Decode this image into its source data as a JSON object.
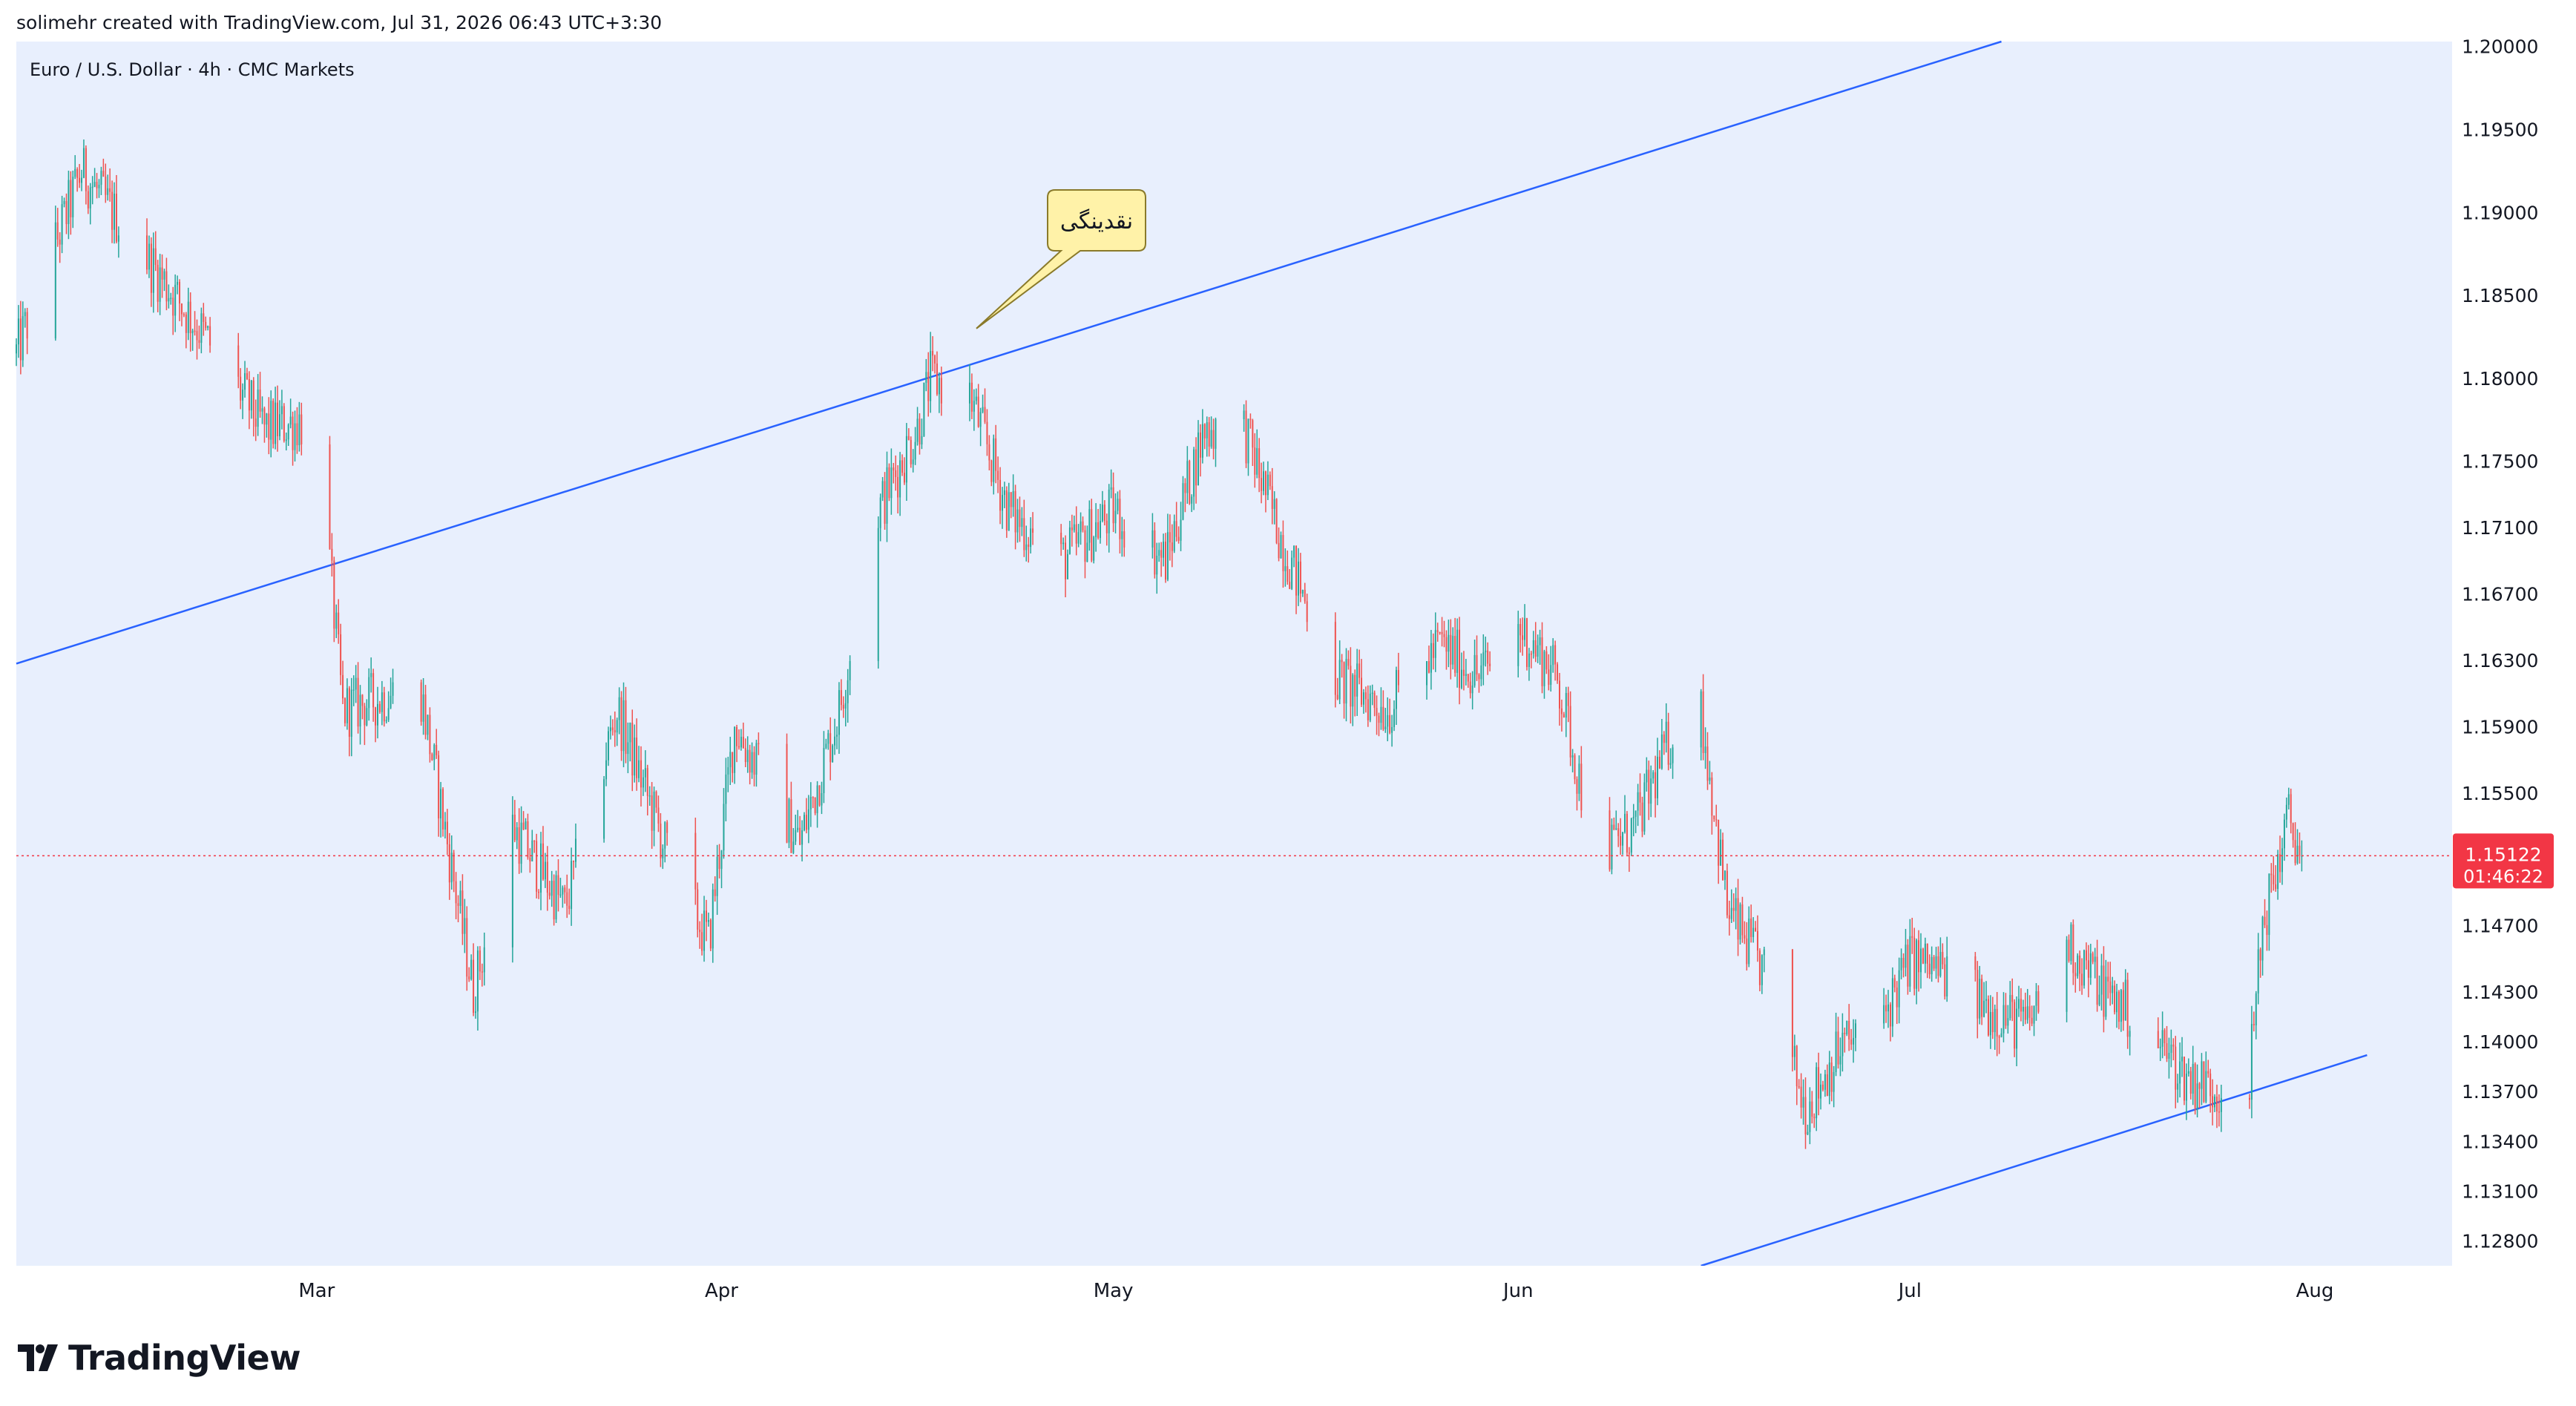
{
  "header": {
    "attribution": "solimehr created with TradingView.com, Jul 31, 2026 06:43 UTC+3:30"
  },
  "symbol": {
    "label": "Euro / U.S. Dollar · 4h · CMC Markets"
  },
  "footer": {
    "brand": "TradingView"
  },
  "colors": {
    "up": "#26a69a",
    "down": "#ef5350",
    "background": "#e8effd",
    "trendline": "#2962ff",
    "price_badge": "#f23645",
    "callout_fill": "#fff2a8",
    "callout_border": "#8a7a2a"
  },
  "chart_data": {
    "type": "candlestick",
    "timeframe": "4h",
    "x_axis": {
      "labels": [
        "Mar",
        "Apr",
        "May",
        "Jun",
        "Jul",
        "Aug"
      ]
    },
    "y_axis": {
      "ticks": [
        "1.20000",
        "1.19500",
        "1.19000",
        "1.18500",
        "1.18000",
        "1.17500",
        "1.17100",
        "1.16700",
        "1.16300",
        "1.15900",
        "1.15500",
        "1.14700",
        "1.14300",
        "1.14000",
        "1.13700",
        "1.13400",
        "1.13100",
        "1.12800"
      ],
      "range": [
        1.1265,
        1.2003
      ]
    },
    "current_price": {
      "value": "1.15122",
      "countdown": "01:46:22"
    },
    "annotation": {
      "text": "نقدینگی",
      "target_price": 1.183
    },
    "trendlines": [
      {
        "name": "upper-channel",
        "from": [
          "Feb 6",
          1.1628
        ],
        "to": [
          "Jul 8",
          1.2003
        ]
      },
      {
        "name": "lower-channel",
        "from": [
          "Jun 15",
          1.1265
        ],
        "to": [
          "Aug 5",
          1.1392
        ]
      }
    ],
    "price_path_keypoints": [
      [
        "Feb 6",
        1.1815
      ],
      [
        "Feb 11",
        1.1925
      ],
      [
        "Feb 20",
        1.183
      ],
      [
        "Feb 25",
        1.177
      ],
      [
        "Mar 1",
        1.1775
      ],
      [
        "Mar 3",
        1.16
      ],
      [
        "Mar 7",
        1.161
      ],
      [
        "Mar 9",
        1.161
      ],
      [
        "Mar 11",
        1.152
      ],
      [
        "Mar 13",
        1.143
      ],
      [
        "Mar 16",
        1.153
      ],
      [
        "Mar 20",
        1.148
      ],
      [
        "Mar 24",
        1.16
      ],
      [
        "Mar 28",
        1.151
      ],
      [
        "Mar 31",
        1.146
      ],
      [
        "Apr 2",
        1.159
      ],
      [
        "Apr 7",
        1.152
      ],
      [
        "Apr 10",
        1.16
      ],
      [
        "Apr 13",
        1.172
      ],
      [
        "Apr 16",
        1.177
      ],
      [
        "Apr 17",
        1.18
      ],
      [
        "Apr 20",
        1.179
      ],
      [
        "Apr 23",
        1.172
      ],
      [
        "Apr 27",
        1.169
      ],
      [
        "May 1",
        1.172
      ],
      [
        "May 5",
        1.169
      ],
      [
        "May 8",
        1.177
      ],
      [
        "May 11",
        1.177
      ],
      [
        "May 14",
        1.17
      ],
      [
        "May 18",
        1.162
      ],
      [
        "May 22",
        1.16
      ],
      [
        "May 26",
        1.164
      ],
      [
        "May 29",
        1.162
      ],
      [
        "Jun 1",
        1.165
      ],
      [
        "Jun 4",
        1.162
      ],
      [
        "Jun 7",
        1.151
      ],
      [
        "Jun 10",
        1.153
      ],
      [
        "Jun 13",
        1.159
      ],
      [
        "Jun 15",
        1.16
      ],
      [
        "Jun 17",
        1.148
      ],
      [
        "Jun 20",
        1.144
      ],
      [
        "Jun 23",
        1.136
      ],
      [
        "Jun 26",
        1.14
      ],
      [
        "Jun 28",
        1.14
      ],
      [
        "Jul 1",
        1.145
      ],
      [
        "Jul 4",
        1.144
      ],
      [
        "Jul 7",
        1.142
      ],
      [
        "Jul 10",
        1.141
      ],
      [
        "Jul 13",
        1.146
      ],
      [
        "Jul 16",
        1.143
      ],
      [
        "Jul 19",
        1.141
      ],
      [
        "Jul 22",
        1.138
      ],
      [
        "Jul 25",
        1.137
      ],
      [
        "Jul 27",
        1.138
      ],
      [
        "Jul 28",
        1.147
      ],
      [
        "Jul 30",
        1.1535
      ],
      [
        "Jul 31",
        1.15122
      ]
    ]
  }
}
